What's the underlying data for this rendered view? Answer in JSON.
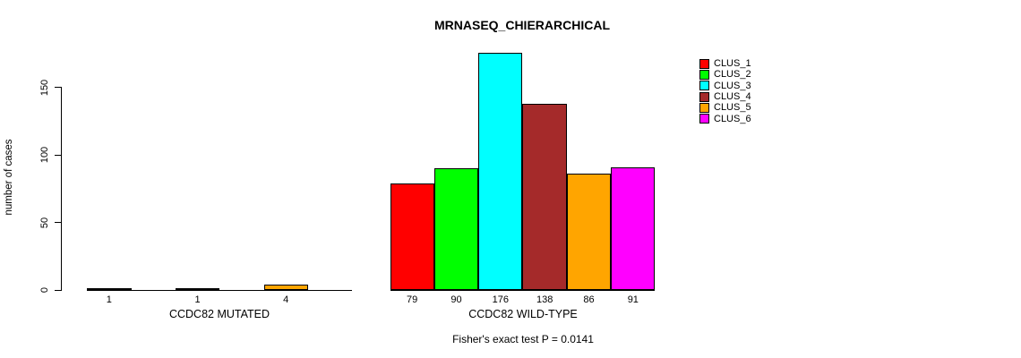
{
  "chart_data": {
    "type": "bar",
    "title": "MRNASEQ_CHIERARCHICAL",
    "ylabel": "number of cases",
    "footnote": "Fisher's exact test P = 0.0141",
    "ylim": [
      0,
      176
    ],
    "yticks": [
      0,
      50,
      100,
      150
    ],
    "grid": false,
    "legend_position": "right",
    "clusters": [
      "CLUS_1",
      "CLUS_2",
      "CLUS_3",
      "CLUS_4",
      "CLUS_5",
      "CLUS_6"
    ],
    "colors": [
      "#FF0000",
      "#00FF00",
      "#00FFFF",
      "#A52A2A",
      "#FFA500",
      "#FF00FF"
    ],
    "groups": [
      {
        "label": "CCDC82 MUTATED",
        "values": [
          1,
          0,
          1,
          0,
          4,
          0
        ]
      },
      {
        "label": "CCDC82 WILD-TYPE",
        "values": [
          79,
          90,
          176,
          138,
          86,
          91
        ]
      }
    ]
  }
}
